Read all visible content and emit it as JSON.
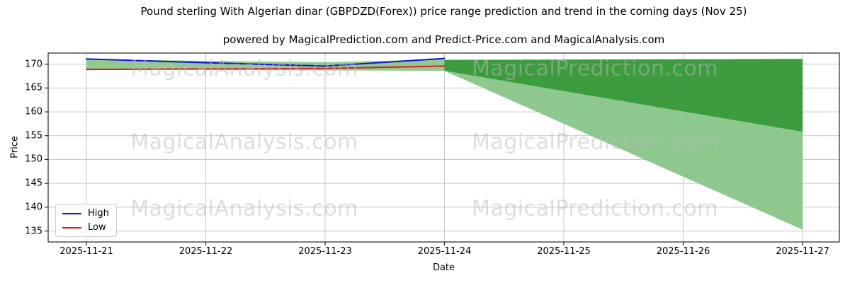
{
  "title": "Pound sterling With Algerian dinar (GBPDZD(Forex)) price range prediction and trend in the coming days (Nov 25)",
  "subtitle": "powered by MagicalPrediction.com and Predict-Price.com and MagicalAnalysis.com",
  "x_label": "Date",
  "y_label": "Price",
  "watermark_texts": [
    "MagicalAnalysis.com",
    "MagicalPrediction.com"
  ],
  "legend": {
    "items": [
      {
        "label": "High",
        "color": "#1212cc"
      },
      {
        "label": "Low",
        "color": "#d81f1f"
      }
    ]
  },
  "colors": {
    "grid": "#c6c6c6",
    "spine": "#262626",
    "observed_band": "#7fc17f",
    "prediction_dark": "#3d9c3d",
    "prediction_light": "#8ec88e"
  },
  "chart_data": {
    "type": "line",
    "title": "Pound sterling With Algerian dinar (GBPDZD(Forex)) price range prediction and trend in the coming days (Nov 25)",
    "xlabel": "Date",
    "ylabel": "Price",
    "grid": true,
    "legend_position": "lower left",
    "x": [
      "2025-11-21",
      "2025-11-22",
      "2025-11-23",
      "2025-11-24",
      "2025-11-25",
      "2025-11-26",
      "2025-11-27"
    ],
    "x_ticks": [
      "2025-11-21",
      "2025-11-22",
      "2025-11-23",
      "2025-11-24",
      "2025-11-25",
      "2025-11-26",
      "2025-11-27"
    ],
    "y_ticks": [
      135,
      140,
      145,
      150,
      155,
      160,
      165,
      170
    ],
    "ylim": [
      132.7,
      172.33
    ],
    "series": [
      {
        "name": "High",
        "type": "line",
        "color": "#1212cc",
        "x": [
          "2025-11-21",
          "2025-11-22",
          "2025-11-23",
          "2025-11-24"
        ],
        "values": [
          171.1,
          170.3,
          169.6,
          171.2
        ]
      },
      {
        "name": "Low",
        "type": "line",
        "color": "#d81f1f",
        "x": [
          "2025-11-21",
          "2025-11-22",
          "2025-11-23",
          "2025-11-24"
        ],
        "values": [
          168.9,
          169.0,
          169.1,
          169.6
        ]
      },
      {
        "name": "observed-range-band",
        "type": "area",
        "color": "#7fc17f",
        "opacity": 0.85,
        "x": [
          "2025-11-21",
          "2025-11-22",
          "2025-11-23",
          "2025-11-24"
        ],
        "top": [
          171.0,
          170.7,
          170.4,
          171.0
        ],
        "bottom": [
          168.8,
          168.8,
          168.7,
          168.6
        ]
      },
      {
        "name": "prediction-upper-band",
        "type": "area",
        "color": "#3d9c3d",
        "opacity": 1,
        "x": [
          "2025-11-24",
          "2025-11-27"
        ],
        "top": [
          170.9,
          171.1
        ],
        "bottom": [
          168.6,
          155.8
        ]
      },
      {
        "name": "prediction-lower-fan",
        "type": "area",
        "color": "#8ec88e",
        "opacity": 1,
        "x": [
          "2025-11-24",
          "2025-11-27"
        ],
        "top": [
          168.6,
          155.8
        ],
        "bottom": [
          168.6,
          135.3
        ]
      }
    ]
  }
}
